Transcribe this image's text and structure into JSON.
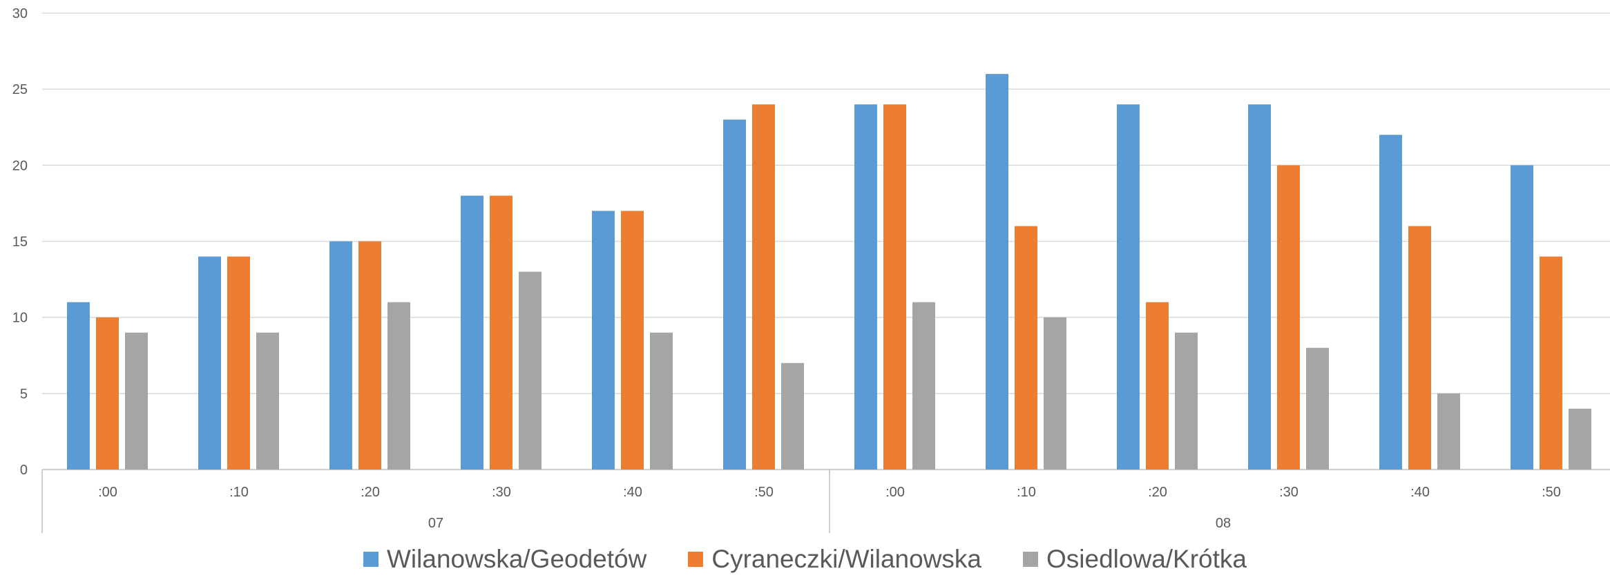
{
  "chart_data": {
    "type": "bar",
    "groups": [
      {
        "label": "07",
        "categories": [
          ":00",
          ":10",
          ":20",
          ":30",
          ":40",
          ":50"
        ]
      },
      {
        "label": "08",
        "categories": [
          ":00",
          ":10",
          ":20",
          ":30",
          ":40",
          ":50"
        ]
      }
    ],
    "series": [
      {
        "name": "Wilanowska/Geodetów",
        "color": "#5B9BD5",
        "values": [
          11,
          14,
          15,
          18,
          17,
          23,
          24,
          26,
          24,
          24,
          22,
          20
        ]
      },
      {
        "name": "Cyraneczki/Wilanowska",
        "color": "#ED7D31",
        "values": [
          10,
          14,
          15,
          18,
          17,
          24,
          24,
          16,
          11,
          20,
          16,
          14
        ]
      },
      {
        "name": "Osiedlowa/Krótka",
        "color": "#A5A5A5",
        "values": [
          9,
          9,
          11,
          13,
          9,
          7,
          11,
          10,
          9,
          8,
          5,
          4
        ]
      }
    ],
    "y_ticks": [
      "0",
      "5",
      "10",
      "15",
      "20",
      "25",
      "30"
    ],
    "ylim": [
      0,
      30
    ],
    "grid": true,
    "legend_position": "bottom"
  }
}
